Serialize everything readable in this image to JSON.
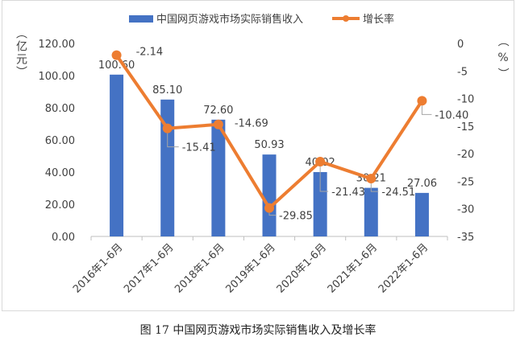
{
  "chart_data": {
    "type": "bar+line",
    "categories": [
      "2016年1-6月",
      "2017年1-6月",
      "2018年1-6月",
      "2019年1-6月",
      "2020年1-6月",
      "2021年1-6月",
      "2022年1-6月"
    ],
    "series": [
      {
        "name": "中国网页游戏市场实际销售收入",
        "type": "bar",
        "axis": "left",
        "color": "#4472C4",
        "values": [
          100.6,
          85.1,
          72.6,
          50.93,
          40.02,
          30.21,
          27.06
        ],
        "labels": [
          "100.60",
          "85.10",
          "72.60",
          "50.93",
          "40.02",
          "30.21",
          "27.06"
        ]
      },
      {
        "name": "增长率",
        "type": "line",
        "axis": "right",
        "color": "#ED7D31",
        "values": [
          -2.14,
          -15.41,
          -14.69,
          -29.85,
          -21.43,
          -24.51,
          -10.4
        ],
        "labels": [
          "-2.14",
          "-15.41",
          "-14.69",
          "-29.85",
          "-21.43",
          "-24.51",
          "-10.40"
        ]
      }
    ],
    "left_axis": {
      "label": "（亿元）",
      "ylim": [
        0,
        120
      ],
      "ticks": [
        "0.00",
        "20.00",
        "40.00",
        "60.00",
        "80.00",
        "100.00",
        "120.00"
      ]
    },
    "right_axis": {
      "label": "（%）",
      "ylim": [
        -35,
        0
      ],
      "ticks": [
        "-35",
        "-30",
        "-25",
        "-20",
        "-15",
        "-10",
        "-5",
        "0"
      ]
    },
    "legend": "top-center",
    "grid": false
  },
  "caption": "图 17 中国网页游戏市场实际销售收入及增长率"
}
